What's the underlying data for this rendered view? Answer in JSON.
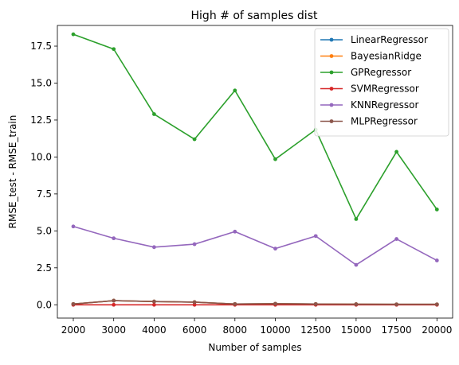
{
  "chart_data": {
    "type": "line",
    "title": "High # of samples dist",
    "xlabel": "Number of samples",
    "ylabel": "RMSE_test - RMSE_train",
    "x": [
      "2000",
      "3000",
      "4000",
      "6000",
      "8000",
      "10000",
      "12500",
      "15000",
      "17500",
      "20000"
    ],
    "ylim": [
      -0.9,
      18.9
    ],
    "yticks": [
      "0.0",
      "2.5",
      "5.0",
      "7.5",
      "10.0",
      "12.5",
      "15.0",
      "17.5"
    ],
    "ytick_values": [
      0,
      2.5,
      5,
      7.5,
      10,
      12.5,
      15,
      17.5
    ],
    "legend_position": "top-right",
    "grid": false,
    "series": [
      {
        "name": "LinearRegressor",
        "color": "#1f77b4",
        "values": [
          0.05,
          0.28,
          0.22,
          0.18,
          0.05,
          0.07,
          0.05,
          0.04,
          0.03,
          0.03
        ]
      },
      {
        "name": "BayesianRidge",
        "color": "#ff7f0e",
        "values": [
          0.05,
          0.28,
          0.22,
          0.18,
          0.05,
          0.07,
          0.05,
          0.04,
          0.03,
          0.03
        ]
      },
      {
        "name": "GPRegressor",
        "color": "#2ca02c",
        "values": [
          18.3,
          17.3,
          12.9,
          11.2,
          14.5,
          9.85,
          11.85,
          5.8,
          10.35,
          6.45
        ]
      },
      {
        "name": "SVMRegressor",
        "color": "#d62728",
        "values": [
          0.0,
          0.0,
          0.0,
          0.0,
          0.0,
          0.0,
          0.0,
          0.0,
          0.0,
          0.0
        ]
      },
      {
        "name": "KNNRegressor",
        "color": "#9467bd",
        "values": [
          5.3,
          4.5,
          3.9,
          4.1,
          4.95,
          3.8,
          4.65,
          2.7,
          4.45,
          3.0
        ]
      },
      {
        "name": "MLPRegressor",
        "color": "#8c564b",
        "values": [
          0.05,
          0.28,
          0.22,
          0.18,
          0.05,
          0.07,
          0.05,
          0.04,
          0.03,
          0.03
        ]
      }
    ]
  }
}
